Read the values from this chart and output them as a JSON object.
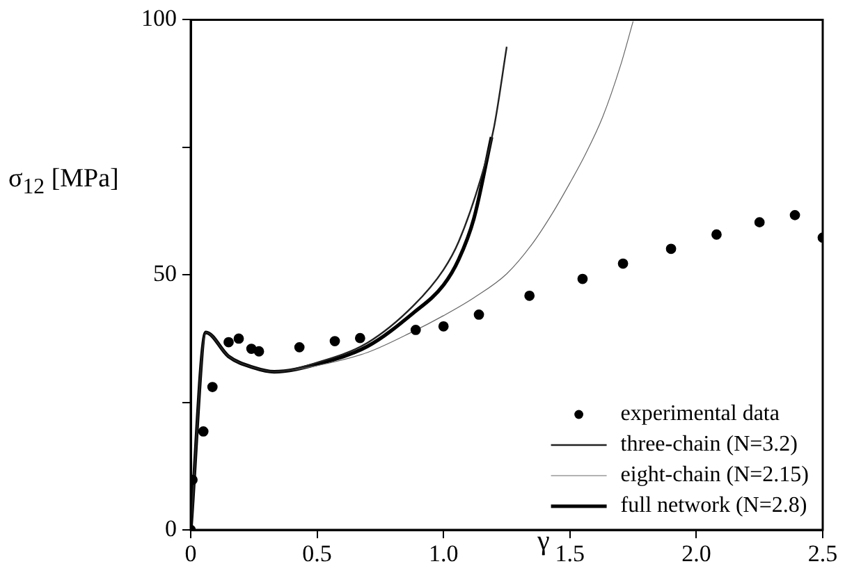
{
  "chart_data": {
    "type": "line",
    "xlabel": "γ",
    "ylabel": "σ$_{12}$ [MPa]",
    "xlim": [
      0,
      2.5
    ],
    "ylim": [
      0,
      100
    ],
    "xticks": [
      0,
      0.5,
      {
        "value": 1,
        "label": "1.0"
      },
      1.5,
      {
        "value": 2,
        "label": "2.0"
      },
      2.5
    ],
    "yticks": [
      0,
      {
        "value": 25,
        "label": null
      },
      50,
      {
        "value": 75,
        "label": null
      },
      100
    ],
    "grid": false,
    "legend": "bottom right",
    "series": [
      {
        "name": "experimental data",
        "type": "scatter",
        "marker": "circle",
        "color": "#000000",
        "x": [
          0,
          0.007,
          0.05,
          0.086,
          0.15,
          0.19,
          0.24,
          0.27,
          0.43,
          0.57,
          0.67,
          0.89,
          1.0,
          1.14,
          1.34,
          1.55,
          1.71,
          1.9,
          2.08,
          2.25,
          2.39,
          2.5
        ],
        "values": [
          0,
          9.8,
          19.3,
          28,
          36.8,
          37.5,
          35.5,
          35,
          35.8,
          37,
          37.6,
          39.2,
          39.9,
          42.2,
          45.9,
          49.2,
          52.2,
          55.1,
          57.9,
          60.3,
          61.7,
          57.3
        ]
      },
      {
        "name": "three-chain (N=3.2)",
        "color": "#222222",
        "x": [
          0,
          0.06,
          0.15,
          0.25,
          0.33,
          0.5,
          0.7,
          0.88,
          1.0,
          1.06,
          1.15,
          1.2,
          1.25
        ],
        "values": [
          0,
          38.7,
          34,
          31.8,
          31,
          32.8,
          36.7,
          43.9,
          51,
          56.5,
          69.3,
          79,
          94.7
        ]
      },
      {
        "name": "eight-chain (N=2.15)",
        "color": "#666666",
        "x": [
          0,
          0.06,
          0.15,
          0.25,
          0.33,
          0.5,
          0.7,
          0.88,
          1.0,
          1.12,
          1.25,
          1.35,
          1.43,
          1.5,
          1.56,
          1.63,
          1.7,
          1.75
        ],
        "values": [
          0,
          38.7,
          34,
          31.8,
          31,
          32.2,
          34.8,
          38.9,
          42,
          45.5,
          50.2,
          56,
          62,
          68,
          73.5,
          81,
          91,
          99.7
        ]
      },
      {
        "name": "full network (N=2.8)",
        "color": "#000000",
        "x": [
          0,
          0.06,
          0.15,
          0.25,
          0.33,
          0.5,
          0.7,
          0.88,
          1.0,
          1.06,
          1.12,
          1.19
        ],
        "values": [
          0,
          38.7,
          34,
          31.8,
          31,
          32.5,
          36,
          42.5,
          48,
          53,
          61,
          77
        ]
      }
    ]
  }
}
